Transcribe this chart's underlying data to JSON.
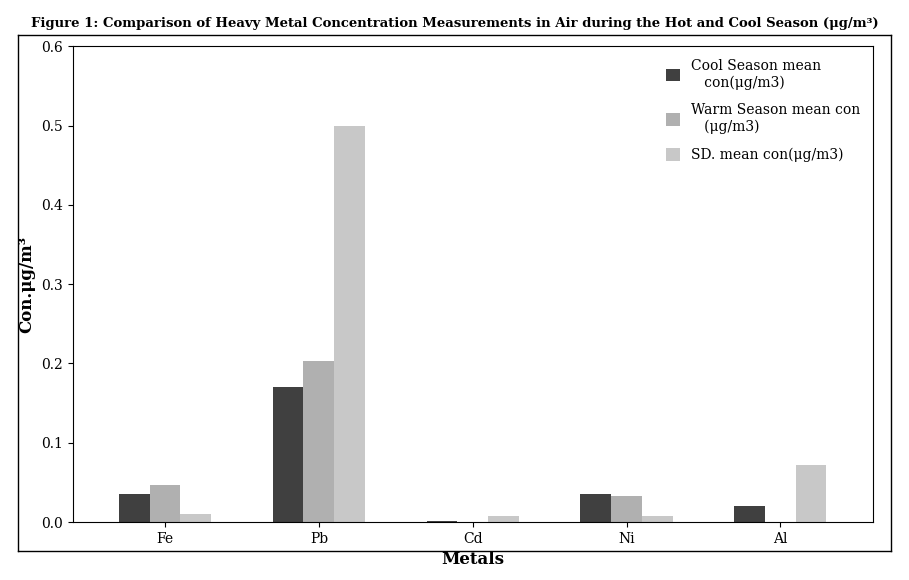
{
  "title": "Figure 1: Comparison of Heavy Metal Concentration Measurements in Air during the Hot and Cool Season (μg/m³)",
  "categories": [
    "Fe",
    "Pb",
    "Cd",
    "Ni",
    "Al"
  ],
  "cool_season": [
    0.035,
    0.17,
    0.001,
    0.035,
    0.02
  ],
  "warm_season": [
    0.047,
    0.203,
    0.0,
    0.033,
    0.0
  ],
  "sd_mean": [
    0.01,
    0.5,
    0.007,
    0.007,
    0.072
  ],
  "colors": [
    "#404040",
    "#b0b0b0",
    "#c8c8c8"
  ],
  "legend_labels": [
    "Cool Season mean\n   con(μg/m3)",
    "Warm Season mean con\n   (μg/m3)",
    "SD. mean con(μg/m3)"
  ],
  "ylabel": "Con.μg/m³",
  "xlabel": "Metals",
  "ylim": [
    0,
    0.6
  ],
  "yticks": [
    0.0,
    0.1,
    0.2,
    0.3,
    0.4,
    0.5,
    0.6
  ],
  "bar_width": 0.2,
  "title_fontsize": 9.5,
  "axis_label_fontsize": 12,
  "tick_fontsize": 10,
  "legend_fontsize": 10
}
